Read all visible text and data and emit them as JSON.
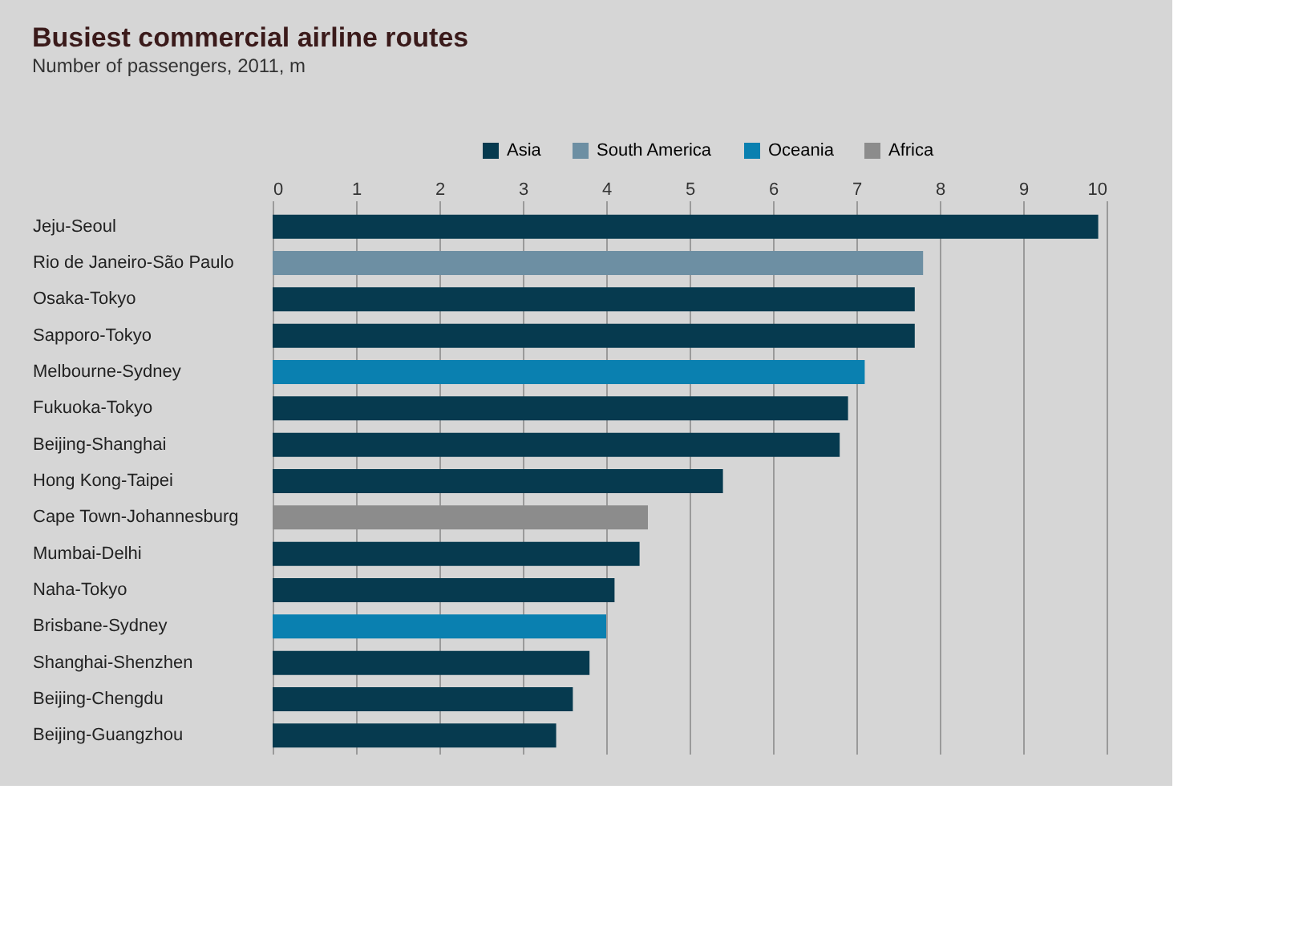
{
  "chart_data": {
    "type": "bar",
    "orientation": "horizontal",
    "title": "Busiest commercial airline routes",
    "subtitle": "Number of passengers, 2011, m",
    "categories": [
      "Jeju-Seoul",
      "Rio de Janeiro-São Paulo",
      "Osaka-Tokyo",
      "Sapporo-Tokyo",
      "Melbourne-Sydney",
      "Fukuoka-Tokyo",
      "Beijing-Shanghai",
      "Hong Kong-Taipei",
      "Cape Town-Johannesburg",
      "Mumbai-Delhi",
      "Naha-Tokyo",
      "Brisbane-Sydney",
      "Shanghai-Shenzhen",
      "Beijing-Chengdu",
      "Beijing-Guangzhou"
    ],
    "series": [
      {
        "name": "Asia",
        "color": "#063a4f",
        "values": [
          9.9,
          null,
          7.7,
          7.7,
          null,
          6.9,
          6.8,
          5.4,
          null,
          4.4,
          4.1,
          null,
          3.8,
          3.6,
          3.4
        ]
      },
      {
        "name": "South America",
        "color": "#6d8fa3",
        "values": [
          null,
          7.8,
          null,
          null,
          null,
          null,
          null,
          null,
          null,
          null,
          null,
          null,
          null,
          null,
          null
        ]
      },
      {
        "name": "Oceania",
        "color": "#0a80b0",
        "values": [
          null,
          null,
          null,
          null,
          7.1,
          null,
          null,
          null,
          null,
          null,
          null,
          4.0,
          null,
          null,
          null
        ]
      },
      {
        "name": "Africa",
        "color": "#8c8c8c",
        "values": [
          null,
          null,
          null,
          null,
          null,
          null,
          null,
          null,
          4.5,
          null,
          null,
          null,
          null,
          null,
          null
        ]
      }
    ],
    "xlim": [
      0,
      10
    ],
    "xticks": [
      0,
      1,
      2,
      3,
      4,
      5,
      6,
      7,
      8,
      9,
      10
    ],
    "grid": "x",
    "legend": "top right"
  }
}
